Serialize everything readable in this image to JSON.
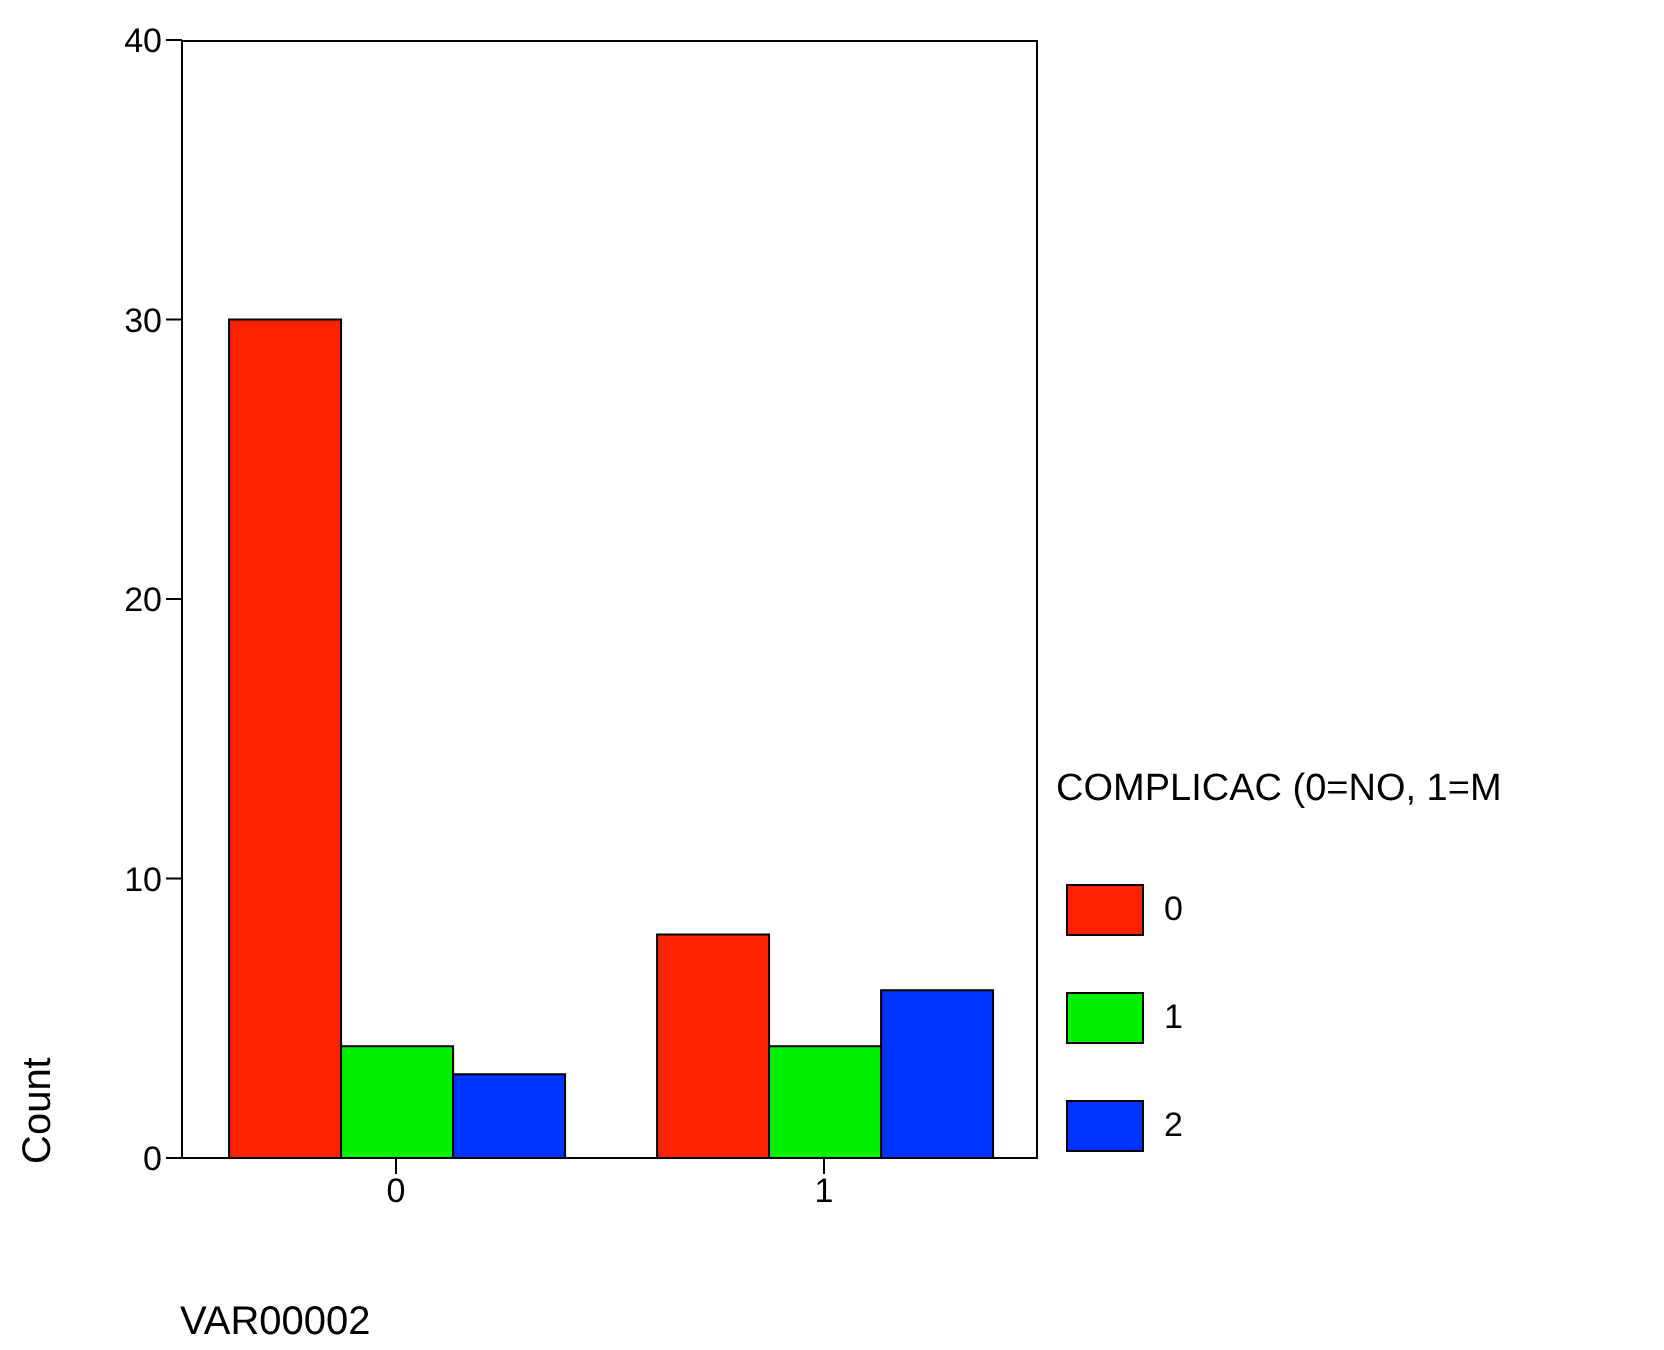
{
  "chart_data": {
    "type": "bar",
    "categories": [
      "0",
      "1"
    ],
    "xlabel": "VAR00002",
    "ylabel": "Count",
    "legend_title": "COMPLICAC (0=NO, 1=M",
    "legend": "right",
    "grid": false,
    "ylim": [
      0,
      40
    ],
    "yticks": [
      0,
      10,
      20,
      30,
      40
    ],
    "series": [
      {
        "name": "0",
        "color": "#ff2200",
        "values": [
          30,
          8
        ]
      },
      {
        "name": "1",
        "color": "#00ee00",
        "values": [
          4,
          4
        ]
      },
      {
        "name": "2",
        "color": "#0033ff",
        "values": [
          3,
          6
        ]
      }
    ]
  }
}
